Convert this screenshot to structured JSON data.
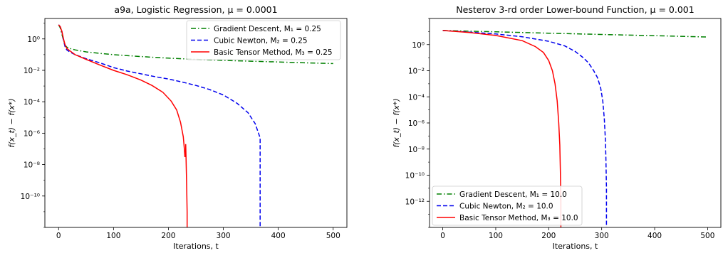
{
  "chart_data": [
    {
      "type": "line",
      "title": "a9a, Logistic Regression, μ = 0.0001",
      "xlabel": "Iterations, t",
      "ylabel": "f(x_t) − f(x*)",
      "y_scale": "log",
      "grid": false,
      "legend_position": "top-right",
      "xlim": [
        -25,
        525
      ],
      "ylim": [
        1e-12,
        20
      ],
      "x_ticks": [
        0,
        100,
        200,
        300,
        400,
        500
      ],
      "y_ticks": [
        1,
        0.01,
        0.0001,
        1e-06,
        1e-08,
        1e-10
      ],
      "x_tick_labels": [
        "0",
        "100",
        "200",
        "300",
        "400",
        "500"
      ],
      "y_tick_labels": [
        "10⁰",
        "10⁻²",
        "10⁻⁴",
        "10⁻⁶",
        "10⁻⁸",
        "10⁻¹⁰"
      ],
      "series": [
        {
          "name": "Gradient Descent, M₁ = 0.25",
          "color": "#008000",
          "dash": "dashdot",
          "x": [
            0,
            3,
            6,
            9,
            12,
            15,
            20,
            30,
            50,
            75,
            100,
            150,
            200,
            250,
            300,
            350,
            400,
            450,
            500
          ],
          "y": [
            8,
            5,
            2,
            0.8,
            0.4,
            0.3,
            0.25,
            0.2,
            0.15,
            0.12,
            0.1,
            0.075,
            0.06,
            0.05,
            0.043,
            0.038,
            0.034,
            0.03,
            0.027
          ]
        },
        {
          "name": "Cubic Newton, M₂ = 0.25",
          "color": "#0000ee",
          "dash": "dashed",
          "x": [
            0,
            3,
            6,
            9,
            12,
            15,
            20,
            30,
            50,
            75,
            100,
            125,
            150,
            175,
            200,
            225,
            250,
            275,
            300,
            325,
            345,
            358,
            364,
            367,
            367
          ],
          "y": [
            8,
            6,
            3,
            0.8,
            0.3,
            0.2,
            0.15,
            0.1,
            0.055,
            0.03,
            0.015,
            0.009,
            0.006,
            0.004,
            0.0028,
            0.0018,
            0.0011,
            0.0006,
            0.00027,
            8e-05,
            2e-05,
            4e-06,
            1e-06,
            5e-07,
            1e-12
          ]
        },
        {
          "name": "Basic Tensor Method, M₃ = 0.25",
          "color": "#ff0000",
          "dash": "solid",
          "x": [
            0,
            3,
            6,
            9,
            12,
            15,
            20,
            30,
            50,
            75,
            100,
            125,
            150,
            170,
            190,
            205,
            215,
            222,
            227,
            229,
            230,
            230.5,
            231,
            231.5,
            232,
            233,
            234,
            234
          ],
          "y": [
            8,
            6,
            3,
            1,
            0.4,
            0.25,
            0.18,
            0.1,
            0.05,
            0.022,
            0.01,
            0.0052,
            0.0024,
            0.0011,
            0.0004,
            0.00011,
            3e-05,
            5e-06,
            6e-07,
            1e-07,
            3e-08,
            8e-08,
            3e-08,
            2e-07,
            4e-08,
            1e-09,
            1e-11,
            1e-12
          ]
        }
      ]
    },
    {
      "type": "line",
      "title": "Nesterov 3-rd order Lower-bound Function, μ = 0.001",
      "xlabel": "Iterations, t",
      "ylabel": "f(x_t) − f(x*)",
      "y_scale": "log",
      "grid": false,
      "legend_position": "bottom-left",
      "xlim": [
        -25,
        525
      ],
      "ylim": [
        1e-14,
        100
      ],
      "x_ticks": [
        0,
        100,
        200,
        300,
        400,
        500
      ],
      "y_ticks": [
        1,
        0.01,
        0.0001,
        1e-06,
        1e-08,
        1e-10,
        1e-12
      ],
      "x_tick_labels": [
        "0",
        "100",
        "200",
        "300",
        "400",
        "500"
      ],
      "y_tick_labels": [
        "10⁰",
        "10⁻²",
        "10⁻⁴",
        "10⁻⁶",
        "10⁻⁸",
        "10⁻¹⁰",
        "10⁻¹²"
      ],
      "series": [
        {
          "name": "Gradient Descent, M₁ = 10.0",
          "color": "#008000",
          "dash": "dashdot",
          "x": [
            0,
            100,
            200,
            300,
            400,
            500
          ],
          "y": [
            12,
            9.5,
            7.5,
            6,
            4.8,
            3.8
          ]
        },
        {
          "name": "Cubic Newton, M₂ = 10.0",
          "color": "#0000ee",
          "dash": "dashed",
          "x": [
            0,
            50,
            100,
            150,
            200,
            230,
            250,
            265,
            275,
            285,
            292,
            298,
            302,
            305,
            307,
            308,
            309,
            309
          ],
          "y": [
            12,
            9,
            6.5,
            4,
            1.8,
            0.8,
            0.3,
            0.1,
            0.04,
            0.01,
            0.003,
            0.0005,
            5e-05,
            2e-06,
            5e-08,
            2e-09,
            1e-11,
            1e-14
          ]
        },
        {
          "name": "Basic Tensor Method, M₃ = 10.0",
          "color": "#ff0000",
          "dash": "solid",
          "x": [
            0,
            50,
            100,
            150,
            175,
            190,
            200,
            207,
            212,
            216,
            219,
            221,
            222,
            223,
            223
          ],
          "y": [
            12,
            8.5,
            5,
            2,
            0.7,
            0.25,
            0.06,
            0.01,
            0.001,
            5e-05,
            1e-06,
            2e-08,
            2e-10,
            1e-12,
            1e-14
          ]
        }
      ]
    }
  ]
}
